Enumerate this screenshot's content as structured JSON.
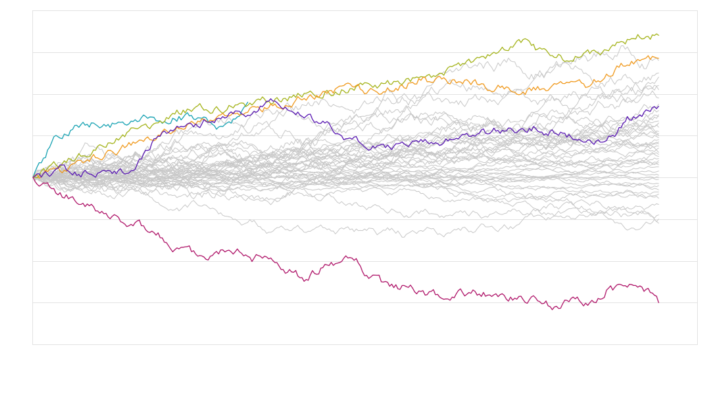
{
  "chart_data": {
    "type": "line",
    "title": "",
    "xlabel": "",
    "ylabel": "",
    "x_range": [
      0,
      300
    ],
    "ylim": [
      -4,
      4
    ],
    "grid": true,
    "legend": "none",
    "n_background_series": 44,
    "background_color": "#c8c8c8",
    "background_end_values": [
      2.8,
      2.5,
      2.4,
      2.1,
      1.9,
      1.6,
      1.5,
      1.45,
      1.35,
      1.3,
      1.2,
      1.1,
      1.05,
      1.0,
      0.95,
      0.9,
      0.85,
      0.8,
      0.75,
      0.7,
      0.6,
      0.5,
      0.45,
      0.4,
      0.3,
      0.25,
      0.15,
      0.05,
      0.0,
      -0.05,
      -0.2,
      -0.3,
      -0.35,
      -0.4,
      -0.5,
      -0.65,
      -0.9,
      -1.0,
      -1.1,
      2.2,
      1.75,
      0.55,
      -0.15,
      0.35
    ],
    "series": [
      {
        "name": "cyan",
        "color": "#1aa3b3",
        "anchors": [
          [
            0,
            0
          ],
          [
            5,
            0.4
          ],
          [
            10,
            0.9
          ],
          [
            20,
            1.15
          ],
          [
            25,
            1.3
          ],
          [
            35,
            1.25
          ],
          [
            45,
            1.35
          ],
          [
            55,
            1.4
          ],
          [
            60,
            1.25
          ],
          [
            70,
            1.45
          ],
          [
            80,
            1.45
          ],
          [
            90,
            1.2
          ],
          [
            95,
            1.35
          ],
          [
            100,
            1.6
          ],
          [
            103,
            1.8
          ]
        ]
      },
      {
        "name": "yellow-green",
        "color": "#a5b41d",
        "anchors": [
          [
            0,
            0
          ],
          [
            10,
            0.3
          ],
          [
            25,
            0.55
          ],
          [
            40,
            0.95
          ],
          [
            50,
            1.15
          ],
          [
            60,
            1.35
          ],
          [
            70,
            1.55
          ],
          [
            80,
            1.65
          ],
          [
            90,
            1.6
          ],
          [
            100,
            1.75
          ],
          [
            120,
            1.9
          ],
          [
            140,
            2.05
          ],
          [
            160,
            2.15
          ],
          [
            175,
            2.25
          ],
          [
            195,
            2.45
          ],
          [
            210,
            2.75
          ],
          [
            225,
            3.1
          ],
          [
            235,
            3.2
          ],
          [
            245,
            3.0
          ],
          [
            255,
            2.85
          ],
          [
            265,
            2.95
          ],
          [
            280,
            3.15
          ],
          [
            290,
            3.4
          ],
          [
            300,
            3.4
          ]
        ]
      },
      {
        "name": "orange",
        "color": "#f09a1f",
        "anchors": [
          [
            0,
            0
          ],
          [
            15,
            0.2
          ],
          [
            30,
            0.45
          ],
          [
            45,
            0.75
          ],
          [
            60,
            1.0
          ],
          [
            75,
            1.25
          ],
          [
            90,
            1.4
          ],
          [
            105,
            1.6
          ],
          [
            120,
            1.75
          ],
          [
            135,
            1.95
          ],
          [
            150,
            2.1
          ],
          [
            165,
            2.05
          ],
          [
            175,
            2.15
          ],
          [
            185,
            2.35
          ],
          [
            195,
            2.3
          ],
          [
            205,
            2.3
          ],
          [
            215,
            2.2
          ],
          [
            225,
            2.15
          ],
          [
            235,
            2.05
          ],
          [
            245,
            2.15
          ],
          [
            255,
            2.25
          ],
          [
            265,
            2.2
          ],
          [
            275,
            2.45
          ],
          [
            285,
            2.75
          ],
          [
            300,
            2.85
          ]
        ]
      },
      {
        "name": "purple",
        "color": "#5b1bb3",
        "anchors": [
          [
            0,
            0
          ],
          [
            10,
            0.1
          ],
          [
            15,
            0.25
          ],
          [
            20,
            0.1
          ],
          [
            30,
            0.1
          ],
          [
            38,
            0.0
          ],
          [
            45,
            0.15
          ],
          [
            50,
            0.35
          ],
          [
            55,
            0.6
          ],
          [
            60,
            1.0
          ],
          [
            65,
            1.15
          ],
          [
            75,
            1.2
          ],
          [
            80,
            1.3
          ],
          [
            90,
            1.45
          ],
          [
            100,
            1.5
          ],
          [
            108,
            1.6
          ],
          [
            112,
            1.85
          ],
          [
            118,
            1.75
          ],
          [
            125,
            1.5
          ],
          [
            130,
            1.45
          ],
          [
            140,
            1.35
          ],
          [
            150,
            0.9
          ],
          [
            160,
            0.8
          ],
          [
            170,
            0.75
          ],
          [
            180,
            0.8
          ],
          [
            190,
            0.85
          ],
          [
            200,
            0.9
          ],
          [
            210,
            1.05
          ],
          [
            220,
            1.1
          ],
          [
            230,
            1.15
          ],
          [
            240,
            1.2
          ],
          [
            250,
            1.05
          ],
          [
            260,
            0.95
          ],
          [
            270,
            0.85
          ],
          [
            275,
            0.95
          ],
          [
            280,
            1.0
          ],
          [
            285,
            1.4
          ],
          [
            290,
            1.45
          ],
          [
            300,
            1.7
          ]
        ]
      },
      {
        "name": "magenta",
        "color": "#b0186b",
        "anchors": [
          [
            0,
            0
          ],
          [
            10,
            -0.35
          ],
          [
            20,
            -0.55
          ],
          [
            25,
            -0.65
          ],
          [
            35,
            -0.85
          ],
          [
            45,
            -1.05
          ],
          [
            50,
            -1.15
          ],
          [
            55,
            -1.2
          ],
          [
            60,
            -1.35
          ],
          [
            65,
            -1.6
          ],
          [
            70,
            -1.75
          ],
          [
            75,
            -1.8
          ],
          [
            80,
            -1.85
          ],
          [
            85,
            -1.9
          ],
          [
            90,
            -1.75
          ],
          [
            95,
            -1.7
          ],
          [
            100,
            -1.75
          ],
          [
            105,
            -1.95
          ],
          [
            110,
            -1.9
          ],
          [
            115,
            -2.05
          ],
          [
            120,
            -2.25
          ],
          [
            125,
            -2.3
          ],
          [
            130,
            -2.4
          ],
          [
            135,
            -2.25
          ],
          [
            140,
            -2.15
          ],
          [
            145,
            -2.05
          ],
          [
            150,
            -1.9
          ],
          [
            155,
            -2.0
          ],
          [
            160,
            -2.35
          ],
          [
            170,
            -2.6
          ],
          [
            180,
            -2.65
          ],
          [
            190,
            -2.8
          ],
          [
            200,
            -2.85
          ],
          [
            210,
            -2.75
          ],
          [
            220,
            -2.8
          ],
          [
            230,
            -2.9
          ],
          [
            240,
            -2.95
          ],
          [
            250,
            -3.1
          ],
          [
            260,
            -2.9
          ],
          [
            270,
            -3.05
          ],
          [
            275,
            -2.7
          ],
          [
            285,
            -2.6
          ],
          [
            295,
            -2.75
          ],
          [
            300,
            -3.0
          ]
        ]
      }
    ]
  }
}
